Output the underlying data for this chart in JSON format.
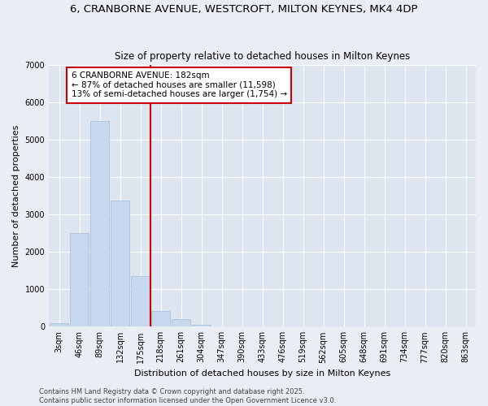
{
  "title": "6, CRANBORNE AVENUE, WESTCROFT, MILTON KEYNES, MK4 4DP",
  "subtitle": "Size of property relative to detached houses in Milton Keynes",
  "xlabel": "Distribution of detached houses by size in Milton Keynes",
  "ylabel": "Number of detached properties",
  "categories": [
    "3sqm",
    "46sqm",
    "89sqm",
    "132sqm",
    "175sqm",
    "218sqm",
    "261sqm",
    "304sqm",
    "347sqm",
    "390sqm",
    "433sqm",
    "476sqm",
    "519sqm",
    "562sqm",
    "605sqm",
    "648sqm",
    "691sqm",
    "734sqm",
    "777sqm",
    "820sqm",
    "863sqm"
  ],
  "values": [
    100,
    2500,
    5500,
    3380,
    1350,
    430,
    200,
    60,
    10,
    5,
    0,
    0,
    0,
    0,
    0,
    0,
    0,
    0,
    0,
    0,
    0
  ],
  "bar_color": "#c5d8ed",
  "bar_edgecolor": "#a0bcd8",
  "vline_position": 4.5,
  "vline_color": "#cc0000",
  "annotation_text": "6 CRANBORNE AVENUE: 182sqm\n← 87% of detached houses are smaller (11,598)\n13% of semi-detached houses are larger (1,754) →",
  "annotation_box_edgecolor": "#cc0000",
  "annotation_box_facecolor": "#ffffff",
  "ylim": [
    0,
    7000
  ],
  "yticks": [
    0,
    1000,
    2000,
    3000,
    4000,
    5000,
    6000,
    7000
  ],
  "footnote": "Contains HM Land Registry data © Crown copyright and database right 2025.\nContains public sector information licensed under the Open Government Licence v3.0.",
  "background_color": "#eaeef4",
  "plot_bg_color": "#dce5f0",
  "grid_color": "#ffffff",
  "title_fontsize": 9.5,
  "subtitle_fontsize": 8.5,
  "axis_label_fontsize": 8,
  "tick_fontsize": 7,
  "annotation_fontsize": 7.5,
  "footnote_fontsize": 6
}
